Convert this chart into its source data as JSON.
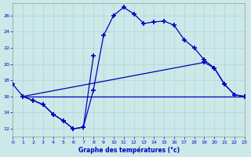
{
  "background_color": "#cce8e8",
  "line_color": "#0000bb",
  "grid_color": "#aad8d8",
  "title": "Graphe des températures (°c)",
  "xlim": [
    0,
    23
  ],
  "ylim": [
    11,
    27.5
  ],
  "xticks": [
    0,
    1,
    2,
    3,
    4,
    5,
    6,
    7,
    8,
    9,
    10,
    11,
    12,
    13,
    14,
    15,
    16,
    17,
    18,
    19,
    20,
    21,
    22,
    23
  ],
  "yticks": [
    12,
    14,
    16,
    18,
    20,
    22,
    24,
    26
  ],
  "curves": [
    {
      "x": [
        0,
        1,
        2,
        3,
        4,
        5,
        6,
        7,
        8,
        9,
        10,
        11,
        12,
        13,
        14,
        15,
        16,
        17,
        18,
        19,
        20,
        21,
        22,
        23
      ],
      "y": [
        17.5,
        16.0,
        15.5,
        15.0,
        13.8,
        13.0,
        12.0,
        12.2,
        16.8,
        23.5,
        26.0,
        27.0,
        26.2,
        25.0,
        25.2,
        25.3,
        24.8,
        23.0,
        22.0,
        20.5,
        19.5,
        17.5,
        16.2,
        16.0
      ]
    },
    {
      "x": [
        1,
        2,
        3,
        4,
        5,
        6,
        7,
        8
      ],
      "y": [
        16.0,
        15.5,
        15.0,
        13.8,
        13.0,
        12.0,
        12.2,
        21.0
      ]
    },
    {
      "x": [
        1,
        19,
        20,
        21,
        22,
        23
      ],
      "y": [
        16.0,
        20.2,
        19.5,
        17.5,
        16.2,
        16.0
      ]
    },
    {
      "x": [
        1,
        23
      ],
      "y": [
        16.0,
        16.0
      ]
    }
  ]
}
